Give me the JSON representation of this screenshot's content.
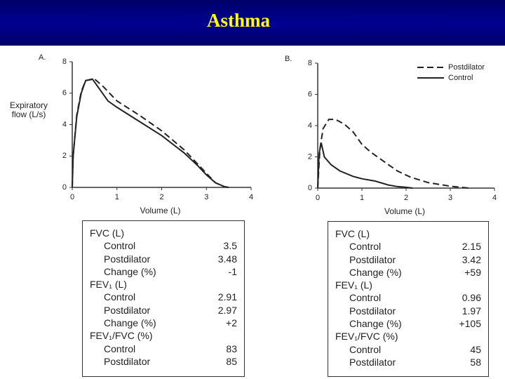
{
  "header": {
    "title": "Asthma"
  },
  "chart_data": [
    {
      "type": "line",
      "panel": "A.",
      "ylabel": "Expiratory flow (L/s)",
      "xlabel": "Volume (L)",
      "xlim": [
        0,
        4
      ],
      "xticks": [
        0,
        1,
        2,
        3,
        4
      ],
      "ylim": [
        0,
        8
      ],
      "yticks": [
        0,
        2,
        4,
        6,
        8
      ],
      "grid": false,
      "series": [
        {
          "style": "dashed",
          "color": "#222222",
          "x": [
            0,
            0.02,
            0.1,
            0.2,
            0.3,
            0.5,
            0.7,
            1,
            1.5,
            2,
            2.5,
            2.8,
            3,
            3.2,
            3.4,
            3.48
          ],
          "values": [
            0,
            2,
            4.6,
            6.1,
            6.8,
            6.9,
            6.4,
            5.5,
            4.6,
            3.6,
            2.4,
            1.5,
            0.9,
            0.3,
            0.05,
            0
          ]
        },
        {
          "style": "solid",
          "color": "#222222",
          "x": [
            0,
            0.02,
            0.1,
            0.2,
            0.3,
            0.45,
            0.6,
            0.8,
            1,
            1.5,
            2,
            2.5,
            2.8,
            3,
            3.2,
            3.4,
            3.5
          ],
          "values": [
            0,
            2,
            4.5,
            6,
            6.8,
            6.9,
            6.3,
            5.5,
            5.1,
            4.2,
            3.3,
            2.2,
            1.4,
            0.8,
            0.3,
            0.05,
            0
          ]
        }
      ]
    },
    {
      "type": "line",
      "panel": "B.",
      "xlabel": "Volume (L)",
      "xlim": [
        0,
        4
      ],
      "xticks": [
        0,
        1,
        2,
        3,
        4
      ],
      "ylim": [
        0,
        8
      ],
      "yticks": [
        0,
        2,
        4,
        6,
        8
      ],
      "grid": false,
      "legend": "upper right",
      "series": [
        {
          "name": "Postdilator",
          "style": "dashed",
          "color": "#222222",
          "x": [
            0,
            0.05,
            0.12,
            0.25,
            0.4,
            0.6,
            0.8,
            1,
            1.2,
            1.5,
            1.8,
            2.1,
            2.5,
            3,
            3.42
          ],
          "values": [
            0,
            2.5,
            3.8,
            4.4,
            4.4,
            4.1,
            3.6,
            2.8,
            2.3,
            1.7,
            1.1,
            0.7,
            0.35,
            0.12,
            0
          ]
        },
        {
          "name": "Control",
          "style": "solid",
          "color": "#222222",
          "x": [
            0,
            0.03,
            0.08,
            0.15,
            0.3,
            0.5,
            0.8,
            1,
            1.3,
            1.6,
            1.8,
            2,
            2.15
          ],
          "values": [
            0,
            2.2,
            2.9,
            2,
            1.5,
            1.1,
            0.75,
            0.6,
            0.45,
            0.2,
            0.1,
            0.05,
            0
          ]
        }
      ]
    }
  ],
  "tables": [
    {
      "sections": [
        {
          "title": "FVC (L)",
          "rows": [
            [
              "Control",
              "3.5"
            ],
            [
              "Postdilator",
              "3.48"
            ],
            [
              "Change (%)",
              "-1"
            ]
          ]
        },
        {
          "title": "FEV₁ (L)",
          "rows": [
            [
              "Control",
              "2.91"
            ],
            [
              "Postdilator",
              "2.97"
            ],
            [
              "Change (%)",
              "+2"
            ]
          ]
        },
        {
          "title": "FEV₁/FVC (%)",
          "rows": [
            [
              "Control",
              "83"
            ],
            [
              "Postdilator",
              "85"
            ]
          ]
        }
      ]
    },
    {
      "sections": [
        {
          "title": "FVC (L)",
          "rows": [
            [
              "Control",
              "2.15"
            ],
            [
              "Postdilator",
              "3.42"
            ],
            [
              "Change (%)",
              "+59"
            ]
          ]
        },
        {
          "title": "FEV₁ (L)",
          "rows": [
            [
              "Control",
              "0.96"
            ],
            [
              "Postdilator",
              "1.97"
            ],
            [
              "Change (%)",
              "+105"
            ]
          ]
        },
        {
          "title": "FEV₁/FVC (%)",
          "rows": [
            [
              "Control",
              "45"
            ],
            [
              "Postdilator",
              "58"
            ]
          ]
        }
      ]
    }
  ]
}
